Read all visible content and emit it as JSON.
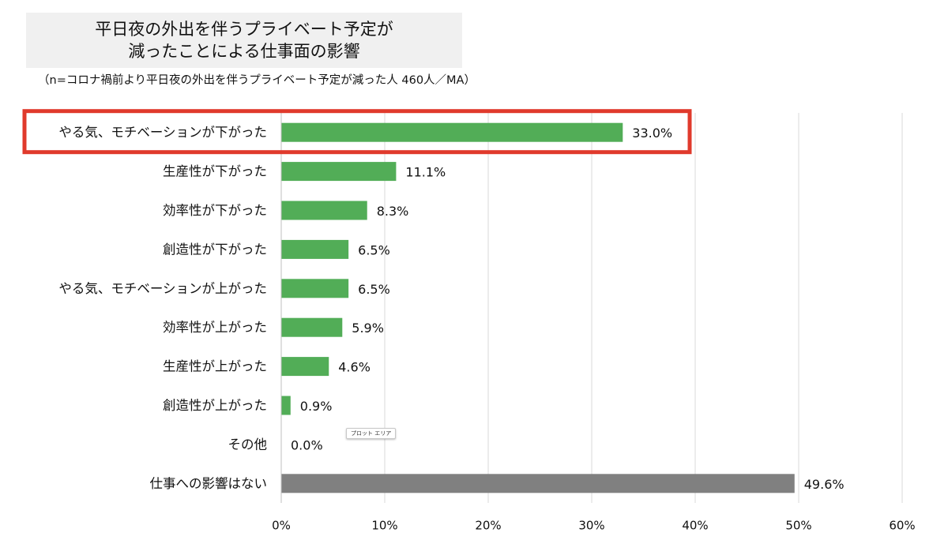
{
  "title": {
    "line1": "平日夜の外出を伴うプライベート予定が",
    "line2": "減ったことによる仕事面の影響"
  },
  "subtitle": "（n=コロナ禍前より平日夜の外出を伴うプライベート予定が減った人 460人／MA）",
  "tooltip": "プロット エリア",
  "highlight_color": "#e03a2c",
  "chart_data": {
    "type": "bar",
    "orientation": "horizontal",
    "categories": [
      "やる気、モチベーションが下がった",
      "生産性が下がった",
      "効率性が下がった",
      "創造性が下がった",
      "やる気、モチベーションが上がった",
      "効率性が上がった",
      "生産性が上がった",
      "創造性が上がった",
      "その他",
      "仕事への影響はない"
    ],
    "values": [
      33.0,
      11.1,
      8.3,
      6.5,
      6.5,
      5.9,
      4.6,
      0.9,
      0.0,
      49.6
    ],
    "value_labels": [
      "33.0%",
      "11.1%",
      "8.3%",
      "6.5%",
      "6.5%",
      "5.9%",
      "4.6%",
      "0.9%",
      "0.0%",
      "49.6%"
    ],
    "colors": [
      "#52ad57",
      "#52ad57",
      "#52ad57",
      "#52ad57",
      "#52ad57",
      "#52ad57",
      "#52ad57",
      "#52ad57",
      "#52ad57",
      "#808080"
    ],
    "xlim": [
      0,
      60
    ],
    "xticks": [
      0,
      10,
      20,
      30,
      40,
      50,
      60
    ],
    "xtick_labels": [
      "0%",
      "10%",
      "20%",
      "30%",
      "40%",
      "50%",
      "60%"
    ],
    "grid": true,
    "highlighted_category": "やる気、モチベーションが下がった"
  }
}
